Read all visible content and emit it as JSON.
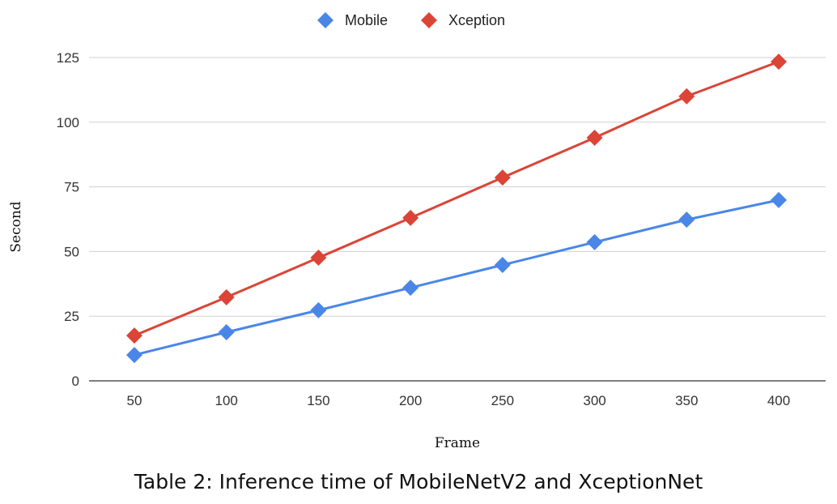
{
  "chart_data": {
    "type": "line",
    "title": "",
    "xlabel": "Frame",
    "ylabel": "Second",
    "categories": [
      "50",
      "100",
      "150",
      "200",
      "250",
      "300",
      "350",
      "400"
    ],
    "yticks": [
      0,
      25,
      50,
      75,
      100,
      125
    ],
    "ylim": [
      0,
      125
    ],
    "grid": true,
    "legend_position": "top-center",
    "series": [
      {
        "name": "Mobile",
        "color": "#4a86e8",
        "values": [
          10.0,
          18.8,
          27.3,
          36.0,
          44.8,
          53.6,
          62.3,
          69.9
        ]
      },
      {
        "name": "Xception",
        "color": "#db4437",
        "values": [
          17.5,
          32.3,
          47.6,
          63.0,
          78.6,
          94.0,
          110.0,
          123.4
        ]
      }
    ]
  },
  "caption": "Table 2: Inference time of MobileNetV2 and XceptionNet"
}
